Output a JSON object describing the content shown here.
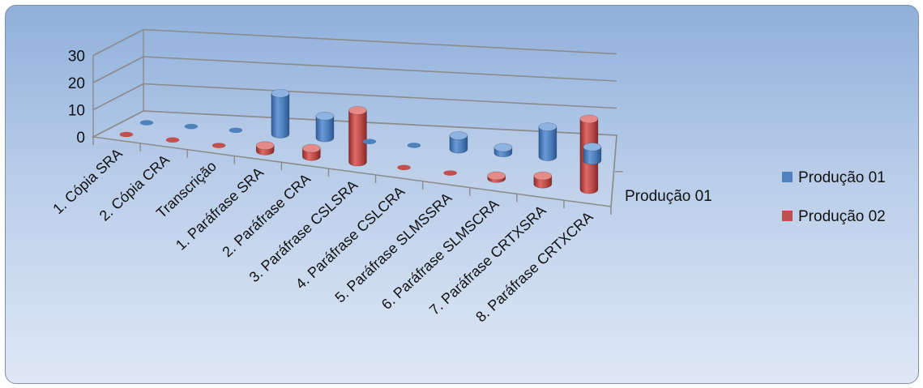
{
  "chart_data": {
    "type": "bar",
    "style": "3d-cylinder",
    "categories": [
      "1. Cópia SRA",
      "2. Cópia CRA",
      "Transcrição",
      "1. Paráfrase SRA",
      "2. Paráfrase CRA",
      "3. Paráfrase CSLSRA",
      "4. Paráfrase CSLCRA",
      "5. Paráfrase SLMSSRA",
      "6. Paráfrase SLMSCRA",
      "7. Paráfrase CRTXSRA",
      "8. Paráfrase CRTXCRA"
    ],
    "series": [
      {
        "name": "Produção 01",
        "values": [
          0,
          0,
          0,
          15,
          8,
          0,
          0,
          5,
          2,
          11,
          5
        ]
      },
      {
        "name": "Produção 02",
        "values": [
          0,
          0,
          0,
          2,
          3,
          19,
          0,
          0,
          1,
          3,
          26
        ]
      }
    ],
    "yticks": [
      "0",
      "10",
      "20",
      "30"
    ],
    "ylim": [
      0,
      30
    ],
    "depth_axis_label": "Produção 01",
    "colors": {
      "series1": "#4f81bd",
      "series2": "#c0504d"
    },
    "grid": true,
    "legend_position": "right"
  }
}
